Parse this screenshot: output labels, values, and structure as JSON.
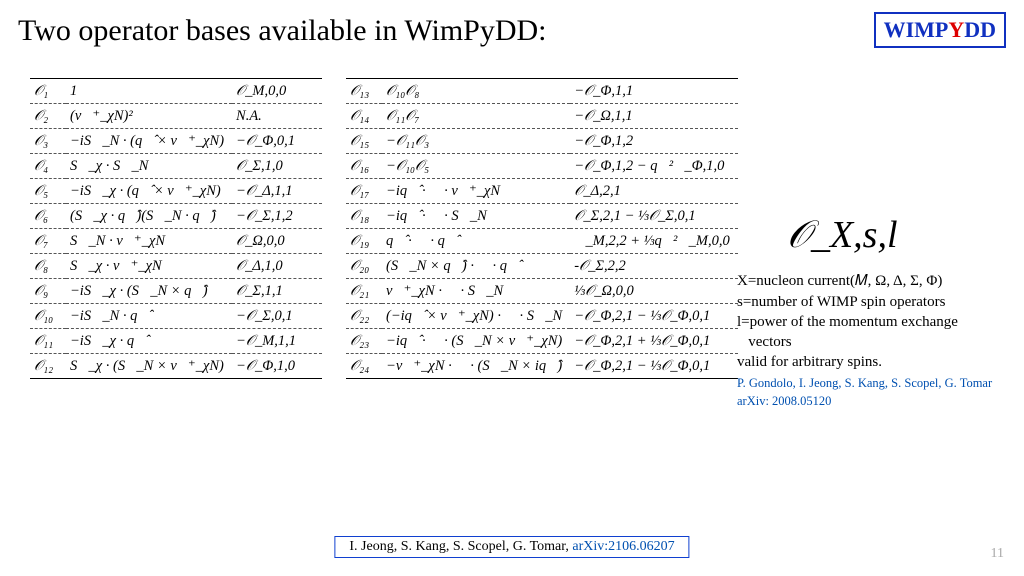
{
  "title": "Two operator bases available in WimPyDD:",
  "logo": {
    "part1": "WIMP",
    "mid": "Y",
    "part2": "DD"
  },
  "table1": [
    {
      "op": "𝒪₁",
      "expr": "1",
      "res": "𝒪_M,0,0"
    },
    {
      "op": "𝒪₂",
      "expr": "(v⃗⁺_χN)²",
      "res": "N.A."
    },
    {
      "op": "𝒪₃",
      "expr": "−iS⃗_N · (q⃗̂ × v⃗⁺_χN)",
      "res": "−𝒪_Φ,0,1"
    },
    {
      "op": "𝒪₄",
      "expr": "S⃗_χ · S⃗_N",
      "res": "𝒪_Σ,1,0"
    },
    {
      "op": "𝒪₅",
      "expr": "−iS⃗_χ · (q⃗̂ × v⃗⁺_χN)",
      "res": "−𝒪_Δ,1,1"
    },
    {
      "op": "𝒪₆",
      "expr": "(S⃗_χ · q⃗̂)(S⃗_N · q⃗̂)",
      "res": "−𝒪_Σ,1,2"
    },
    {
      "op": "𝒪₇",
      "expr": "S⃗_N · v⃗⁺_χN",
      "res": "𝒪_Ω,0,0"
    },
    {
      "op": "𝒪₈",
      "expr": "S⃗_χ · v⃗⁺_χN",
      "res": "𝒪_Δ,1,0"
    },
    {
      "op": "𝒪₉",
      "expr": "−iS⃗_χ · (S⃗_N × q⃗̂)",
      "res": "𝒪_Σ,1,1"
    },
    {
      "op": "𝒪₁₀",
      "expr": "−iS⃗_N · q⃗̂",
      "res": "−𝒪_Σ,0,1"
    },
    {
      "op": "𝒪₁₁",
      "expr": "−iS⃗_χ · q⃗̂",
      "res": "−𝒪_M,1,1"
    },
    {
      "op": "𝒪₁₂",
      "expr": "S⃗_χ · (S⃗_N × v⃗⁺_χN)",
      "res": "−𝒪_Φ,1,0"
    }
  ],
  "table2": [
    {
      "op": "𝒪₁₃",
      "expr": "𝒪₁₀𝒪₈",
      "res": "−𝒪_Φ,1,1"
    },
    {
      "op": "𝒪₁₄",
      "expr": "𝒪₁₁𝒪₇",
      "res": "−𝒪_Ω,1,1"
    },
    {
      "op": "𝒪₁₅",
      "expr": "−𝒪₁₁𝒪₃",
      "res": "−𝒪_Φ,1,2"
    },
    {
      "op": "𝒪₁₆",
      "expr": "−𝒪₁₀𝒪₅",
      "res": "−𝒪_Φ,1,2 − q⃗²𝒪_Φ,1,0"
    },
    {
      "op": "𝒪₁₇",
      "expr": "−iq⃗̂ · 𝒮 · v⃗⁺_χN",
      "res": "𝒪_Δ,2,1"
    },
    {
      "op": "𝒪₁₈",
      "expr": "−iq⃗̂ · 𝒮 · S⃗_N",
      "res": "𝒪_Σ,2,1 − ⅓𝒪_Σ,0,1"
    },
    {
      "op": "𝒪₁₉",
      "expr": "q⃗̂ · 𝒮 · q⃗̂",
      "res": "𝒪_M,2,2 + ⅓q⃗²𝒪_M,0,0"
    },
    {
      "op": "𝒪₂₀",
      "expr": "(S⃗_N × q⃗̂) · 𝒮 · q⃗̂",
      "res": "-𝒪_Σ,2,2"
    },
    {
      "op": "𝒪₂₁",
      "expr": "v⃗⁺_χN · 𝒮 · S⃗_N",
      "res": "⅓𝒪_Ω,0,0"
    },
    {
      "op": "𝒪₂₂",
      "expr": "(−iq⃗̂ × v⃗⁺_χN) · 𝒮 · S⃗_N",
      "res": "−𝒪_Φ,2,1 − ⅓𝒪_Φ,0,1"
    },
    {
      "op": "𝒪₂₃",
      "expr": "−iq⃗̂ · 𝒮 · (S⃗_N × v⃗⁺_χN)",
      "res": "−𝒪_Φ,2,1 + ⅓𝒪_Φ,0,1"
    },
    {
      "op": "𝒪₂₄",
      "expr": "−v⃗⁺_χN · 𝒮 · (S⃗_N × iq⃗̂)",
      "res": "−𝒪_Φ,2,1 − ⅓𝒪_Φ,0,1"
    }
  ],
  "side": {
    "symbol": "𝒪_X,s,l",
    "line1": "X=nucleon current(𝑀, Ω, Δ, Σ, Φ)",
    "line2": "s=number of WIMP spin operators",
    "line3": "l=power of the momentum exchange",
    "line3b": "   vectors",
    "line4": "valid for arbitrary spins.",
    "ref1": "P. Gondolo, I. Jeong, S. Kang, S. Scopel, G. Tomar",
    "ref2": " arXiv: 2008.05120"
  },
  "footer": {
    "authors": "I. Jeong, S. Kang, S. Scopel, G. Tomar, ",
    "arxiv": "arXiv:2106.06207"
  },
  "page": "11"
}
